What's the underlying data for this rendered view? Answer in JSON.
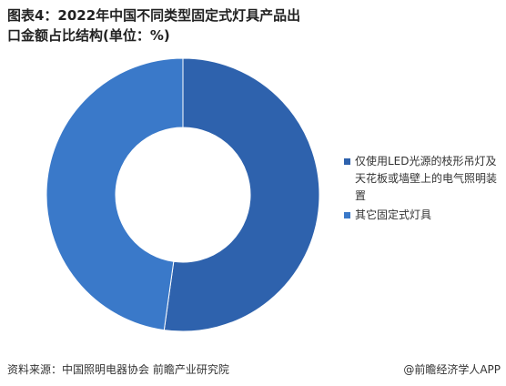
{
  "chart_data": {
    "type": "pie",
    "title": "图表4：2022年中国不同类型固定式灯具产品出口金额占比结构(单位：%)",
    "categories": [
      "仅使用LED光源的枝形吊灯及天花板或墙壁上的电气照明装置",
      "其它固定式灯具"
    ],
    "values": [
      52.2,
      47.8
    ],
    "colors": [
      "#2e62ad",
      "#3a79c9"
    ],
    "donut": true
  },
  "footer": {
    "source": "资料来源：中国照明电器协会 前瞻产业研究院",
    "brand": "@前瞻经济学人APP"
  }
}
